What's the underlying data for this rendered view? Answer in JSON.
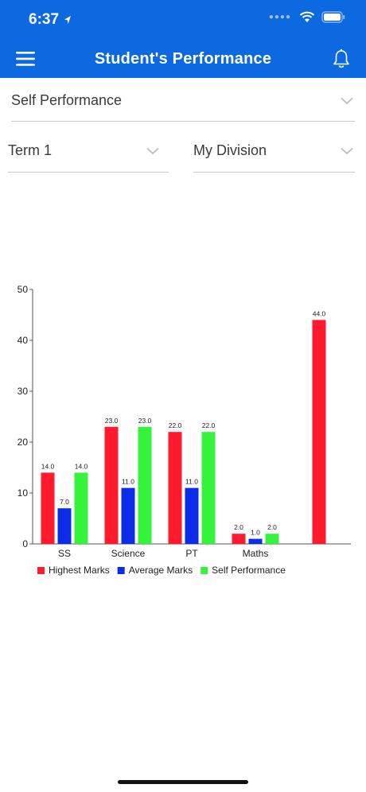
{
  "status_bar": {
    "time": "6:37"
  },
  "app_bar": {
    "title": "Student's Performance"
  },
  "filters": {
    "performance_type": "Self Performance",
    "term": "Term 1",
    "division": "My Division"
  },
  "colors": {
    "primary": "#0c69df",
    "highest": "#ff1a2e",
    "average": "#0c2ce8",
    "self": "#35f23a"
  },
  "chart_data": {
    "type": "bar",
    "categories": [
      "SS",
      "Science",
      "PT",
      "Maths",
      ""
    ],
    "series": [
      {
        "name": "Highest Marks",
        "color": "#ff1a2e",
        "values": [
          14.0,
          23.0,
          22.0,
          2.0,
          44.0
        ]
      },
      {
        "name": "Average Marks",
        "color": "#0c2ce8",
        "values": [
          7.0,
          11.0,
          11.0,
          1.0,
          null
        ]
      },
      {
        "name": "Self Performance",
        "color": "#35f23a",
        "values": [
          14.0,
          23.0,
          22.0,
          2.0,
          null
        ]
      }
    ],
    "ylim": [
      0,
      50
    ],
    "yticks": [
      0,
      10,
      20,
      30,
      40,
      50
    ],
    "legend_position": "bottom-left",
    "grid": false
  }
}
